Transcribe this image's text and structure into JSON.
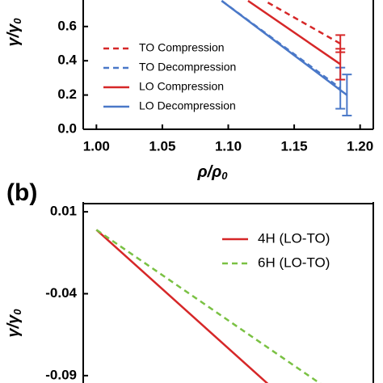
{
  "chart_data": [
    {
      "type": "line",
      "x_label": {
        "text": "ρ/ρ",
        "sub": "0"
      },
      "y_label": {
        "text": "γ/γ",
        "sub": "0"
      },
      "xlim": [
        0.99,
        1.21
      ],
      "xticks": [
        {
          "value": 1.0,
          "label": "1.00"
        },
        {
          "value": 1.05,
          "label": "1.05"
        },
        {
          "value": 1.1,
          "label": "1.10"
        },
        {
          "value": 1.15,
          "label": "1.15"
        },
        {
          "value": 1.2,
          "label": "1.20"
        }
      ],
      "ylim": [
        0,
        0.75
      ],
      "yticks": [
        {
          "value": 0,
          "label": "0.0"
        },
        {
          "value": 0.2,
          "label": "0.2"
        },
        {
          "value": 0.4,
          "label": "0.4"
        },
        {
          "value": 0.6,
          "label": "0.6"
        }
      ],
      "series": [
        {
          "name": "TO Compression",
          "color": "#d62728",
          "dash": true,
          "x": [
            1.13,
            1.185
          ],
          "values": [
            0.74,
            0.5
          ],
          "errors": [
            null,
            0.05
          ]
        },
        {
          "name": "TO Decompression",
          "color": "#4a78c8",
          "dash": true,
          "x": [
            1.095,
            1.185
          ],
          "values": [
            0.75,
            0.24
          ],
          "errors": [
            null,
            0.12
          ]
        },
        {
          "name": "LO Compression",
          "color": "#d62728",
          "dash": false,
          "x": [
            1.115,
            1.185
          ],
          "values": [
            0.75,
            0.38
          ],
          "errors": [
            null,
            0.09
          ]
        },
        {
          "name": "LO Decompression",
          "color": "#4a78c8",
          "dash": false,
          "x": [
            1.095,
            1.19
          ],
          "values": [
            0.75,
            0.2
          ],
          "errors": [
            null,
            0.12
          ]
        }
      ]
    },
    {
      "type": "line",
      "panel_label": "(b)",
      "y_label": {
        "text": "γ/γ",
        "sub": "0"
      },
      "xlim": [
        0.99,
        1.21
      ],
      "ylim": [
        -0.095,
        0.015
      ],
      "yticks": [
        0.01,
        -0.04,
        -0.09
      ],
      "series": [
        {
          "name": "4H (LO-TO)",
          "color": "#d62728",
          "dash": false,
          "x": [
            1.0,
            1.13
          ],
          "values": [
            -0.001,
            -0.095
          ]
        },
        {
          "name": "6H (LO-TO)",
          "color": "#7ac143",
          "dash": true,
          "x": [
            1.0,
            1.17
          ],
          "values": [
            -0.001,
            -0.095
          ]
        }
      ]
    }
  ]
}
